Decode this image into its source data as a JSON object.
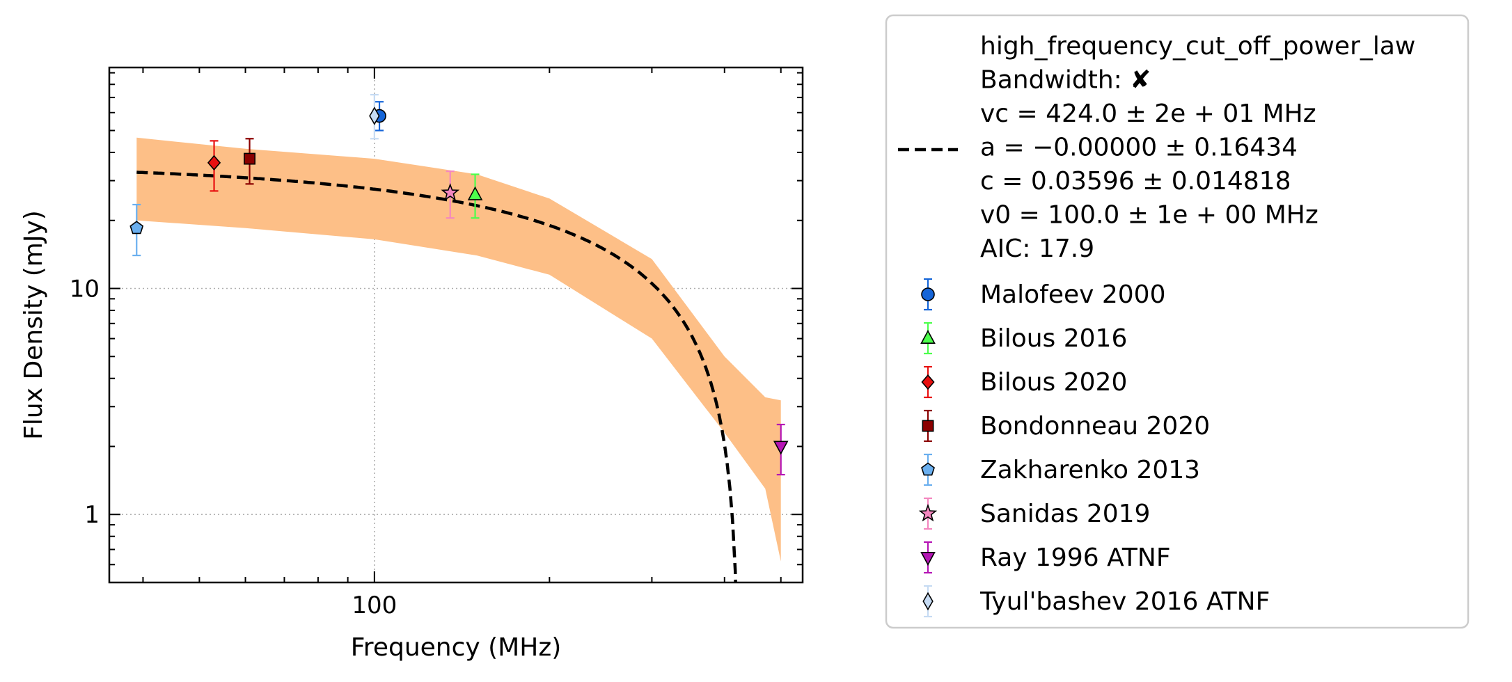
{
  "chart_data": {
    "type": "scatter",
    "xlabel": "Frequency (MHz)",
    "ylabel": "Flux Density (mJy)",
    "xscale": "log",
    "yscale": "log",
    "xlim": [
      35,
      545
    ],
    "ylim": [
      0.5,
      95
    ],
    "x_ticks": [
      {
        "value": 100,
        "label": "100"
      }
    ],
    "y_ticks": [
      {
        "value": 1,
        "label": "1"
      },
      {
        "value": 10,
        "label": "10"
      }
    ],
    "grid": "dotted, major ticks only",
    "legend_position": "outside right",
    "fit": {
      "label_lines": [
        "high_frequency_cut_off_power_law",
        "Bandwidth: ✘",
        "vc = 424.0 ± 2e + 01 MHz",
        "a = −0.00000 ± 0.16434",
        "c = 0.03596 ± 0.014818",
        "v0 = 100.0 ± 1e + 00 MHz",
        "AIC: 17.9"
      ],
      "model": {
        "vc": 424.0,
        "a": 0.0,
        "c": 0.03596,
        "v0": 100.0
      },
      "band_upper": [
        [
          39,
          46.5
        ],
        [
          60,
          41.5
        ],
        [
          100,
          37.5
        ],
        [
          150,
          32
        ],
        [
          200,
          25
        ],
        [
          300,
          13.5
        ],
        [
          400,
          5.0
        ],
        [
          470,
          3.3
        ],
        [
          500,
          3.2
        ]
      ],
      "band_lower": [
        [
          39,
          20.0
        ],
        [
          60,
          18.5
        ],
        [
          100,
          16.5
        ],
        [
          150,
          14
        ],
        [
          200,
          11.5
        ],
        [
          300,
          6.0
        ],
        [
          400,
          2.3
        ],
        [
          470,
          1.3
        ],
        [
          500,
          0.62
        ]
      ],
      "line_color": "#000000",
      "band_color": "#FDBF87"
    },
    "series": [
      {
        "name": "Malofeev 2000",
        "marker": "circle",
        "color": "#1565D8",
        "err_color": "#1565D8",
        "points": [
          {
            "x": 102,
            "y": 58,
            "ylo": 50,
            "yhi": 67
          }
        ]
      },
      {
        "name": "Bilous 2016",
        "marker": "triangle-up",
        "color": "#4CFF4C",
        "err_color": "#4CFF4C",
        "points": [
          {
            "x": 149,
            "y": 26,
            "ylo": 20.5,
            "yhi": 32
          }
        ]
      },
      {
        "name": "Bilous 2020",
        "marker": "diamond",
        "color": "#E81010",
        "err_color": "#E81010",
        "points": [
          {
            "x": 53,
            "y": 36,
            "ylo": 27,
            "yhi": 45
          }
        ]
      },
      {
        "name": "Bondonneau 2020",
        "marker": "square",
        "color": "#8B0000",
        "err_color": "#8B0000",
        "points": [
          {
            "x": 61,
            "y": 37.5,
            "ylo": 29,
            "yhi": 46
          }
        ]
      },
      {
        "name": "Zakharenko 2013",
        "marker": "pentagon",
        "color": "#6AAFEF",
        "err_color": "#6AAFEF",
        "points": [
          {
            "x": 39,
            "y": 18.5,
            "ylo": 14,
            "yhi": 23.5
          }
        ]
      },
      {
        "name": "Sanidas 2019",
        "marker": "star",
        "color": "#F487BF",
        "err_color": "#F487BF",
        "points": [
          {
            "x": 135,
            "y": 26.5,
            "ylo": 20.5,
            "yhi": 33
          }
        ]
      },
      {
        "name": "Ray 1996 ATNF",
        "marker": "triangle-down",
        "color": "#B515B5",
        "err_color": "#B515B5",
        "points": [
          {
            "x": 500,
            "y": 2.0,
            "ylo": 1.5,
            "yhi": 2.5
          }
        ]
      },
      {
        "name": "Tyul'bashev 2016 ATNF",
        "marker": "thin-diamond",
        "color": "#C6DBF3",
        "err_color": "#C6DBF3",
        "points": [
          {
            "x": 100,
            "y": 58,
            "ylo": 46,
            "yhi": 72
          }
        ]
      }
    ]
  }
}
